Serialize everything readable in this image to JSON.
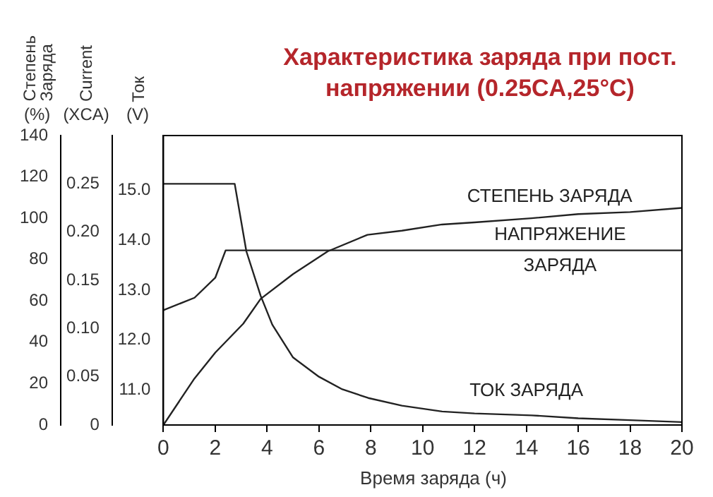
{
  "chart_data": {
    "type": "line",
    "title": "Характеристика заряда при пост. напряжении (0.25CA,25°C)",
    "xlabel": "Время заряда (ч)",
    "ylabel": "Степень Заряда (%)",
    "y2label": "Current (XCA)",
    "y3label": "Ток (V)",
    "xlim": [
      0,
      20
    ],
    "xticks": [
      0,
      2,
      4,
      6,
      8,
      10,
      12,
      14,
      16,
      18,
      20
    ],
    "ylim": [
      0,
      140
    ],
    "yticks": [
      0,
      20,
      40,
      60,
      80,
      100,
      120,
      140
    ],
    "y2lim": [
      0,
      0.3
    ],
    "y2ticks": [
      0,
      0.05,
      {
        "value": 0.1,
        "label": "0.10"
      },
      0.15,
      {
        "value": 0.2,
        "label": "0.20"
      },
      0.25
    ],
    "y3lim": [
      10.3,
      16.1
    ],
    "y3ticks": [
      {
        "value": 11,
        "label": "11.0"
      },
      {
        "value": 12,
        "label": "12.0"
      },
      {
        "value": 13,
        "label": "13.0"
      },
      {
        "value": 14,
        "label": "14.0"
      },
      {
        "value": 15,
        "label": "15.0"
      }
    ],
    "grid": false,
    "legend": false,
    "marker": "none",
    "line_style": "solid",
    "series": [
      {
        "name": "СТЕПЕНЬ ЗАРЯДА",
        "color": "#222222",
        "axis": "y",
        "x": [
          0,
          1.17,
          2,
          3.08,
          3.75,
          5,
          6.34,
          7.87,
          9.2,
          10.75,
          12,
          14.2,
          16,
          18,
          20
        ],
        "values": [
          0,
          22,
          35,
          49,
          61,
          73,
          84,
          92,
          94,
          97,
          98,
          100,
          102,
          103,
          105
        ]
      },
      {
        "name": "НАПРЯЖЕНИЕ ЗАРЯДА",
        "color": "#222222",
        "axis": "y3",
        "x": [
          0,
          1.2,
          2,
          2.4,
          20
        ],
        "values": [
          12.6,
          12.85,
          13.25,
          13.8,
          13.8
        ]
      },
      {
        "name": "ТОК ЗАРЯДА",
        "color": "#222222",
        "axis": "y2",
        "x": [
          0,
          2.75,
          3.2,
          3.75,
          4.2,
          5,
          6,
          6.9,
          7.9,
          9.2,
          10.75,
          12,
          14.2,
          16,
          18,
          20
        ],
        "values": [
          0.25,
          0.25,
          0.18,
          0.134,
          0.104,
          0.07,
          0.05,
          0.037,
          0.028,
          0.02,
          0.014,
          0.012,
          0.01,
          0.007,
          0.005,
          0.003
        ]
      }
    ]
  }
}
